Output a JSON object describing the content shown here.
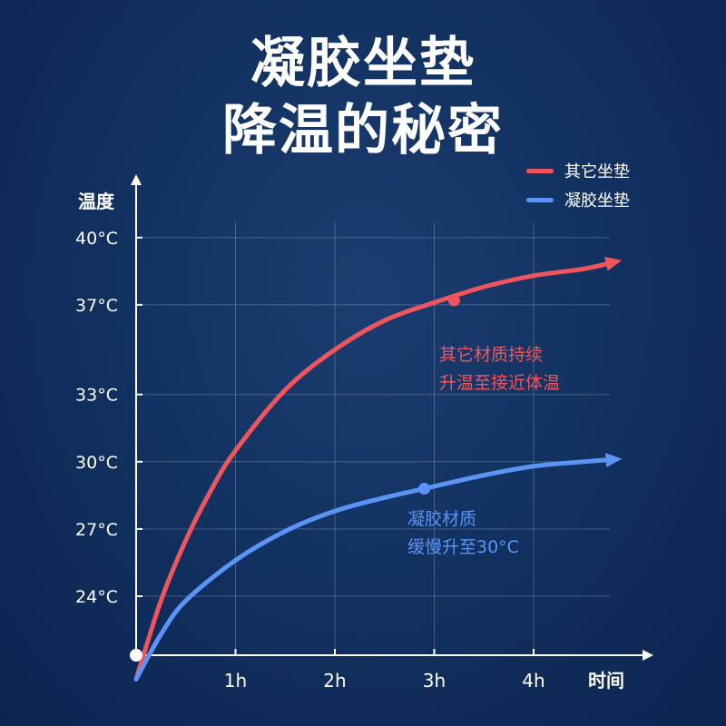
{
  "title": {
    "line1": "凝胶坐垫",
    "line2": "降温的秘密"
  },
  "legend": {
    "items": [
      {
        "label": "其它坐垫",
        "color": "#f0555e"
      },
      {
        "label": "凝胶坐垫",
        "color": "#5b94f6"
      }
    ]
  },
  "chart_data": {
    "type": "line",
    "ylabel": "温度",
    "xlabel": "时间",
    "x_ticks": [
      {
        "value": 1,
        "label": "1h"
      },
      {
        "value": 2,
        "label": "2h"
      },
      {
        "value": 3,
        "label": "3h"
      },
      {
        "value": 4,
        "label": "4h"
      }
    ],
    "y_ticks": [
      {
        "value": 24,
        "label": "24°C"
      },
      {
        "value": 27,
        "label": "27°C"
      },
      {
        "value": 30,
        "label": "30°C"
      },
      {
        "value": 33,
        "label": "33°C"
      },
      {
        "value": 37,
        "label": "37°C"
      },
      {
        "value": 40,
        "label": "40°C"
      }
    ],
    "xlim": [
      0,
      4.8
    ],
    "grid": true,
    "series": [
      {
        "name": "其它坐垫",
        "color": "#f0555e",
        "points": [
          [
            0,
            20.3
          ],
          [
            0.25,
            23.8
          ],
          [
            0.5,
            26.5
          ],
          [
            0.75,
            28.7
          ],
          [
            1,
            30.5
          ],
          [
            1.5,
            33.2
          ],
          [
            2,
            35.0
          ],
          [
            2.5,
            36.3
          ],
          [
            3,
            37.1
          ],
          [
            3.5,
            37.8
          ],
          [
            4,
            38.3
          ],
          [
            4.5,
            38.6
          ],
          [
            4.8,
            38.9
          ]
        ],
        "marker": {
          "x": 3.2,
          "y": 37.2
        },
        "annotation": [
          "其它材质持续",
          "升温至接近体温"
        ]
      },
      {
        "name": "凝胶坐垫",
        "color": "#5b94f6",
        "points": [
          [
            0,
            20.3
          ],
          [
            0.25,
            22.3
          ],
          [
            0.5,
            23.8
          ],
          [
            1,
            25.6
          ],
          [
            1.5,
            26.9
          ],
          [
            2,
            27.8
          ],
          [
            2.5,
            28.4
          ],
          [
            2.9,
            28.8
          ],
          [
            3.5,
            29.4
          ],
          [
            4,
            29.8
          ],
          [
            4.5,
            30.0
          ],
          [
            4.8,
            30.1
          ]
        ],
        "marker": {
          "x": 2.9,
          "y": 28.8
        },
        "annotation": [
          "凝胶材质",
          "缓慢升至30°C"
        ]
      }
    ]
  }
}
